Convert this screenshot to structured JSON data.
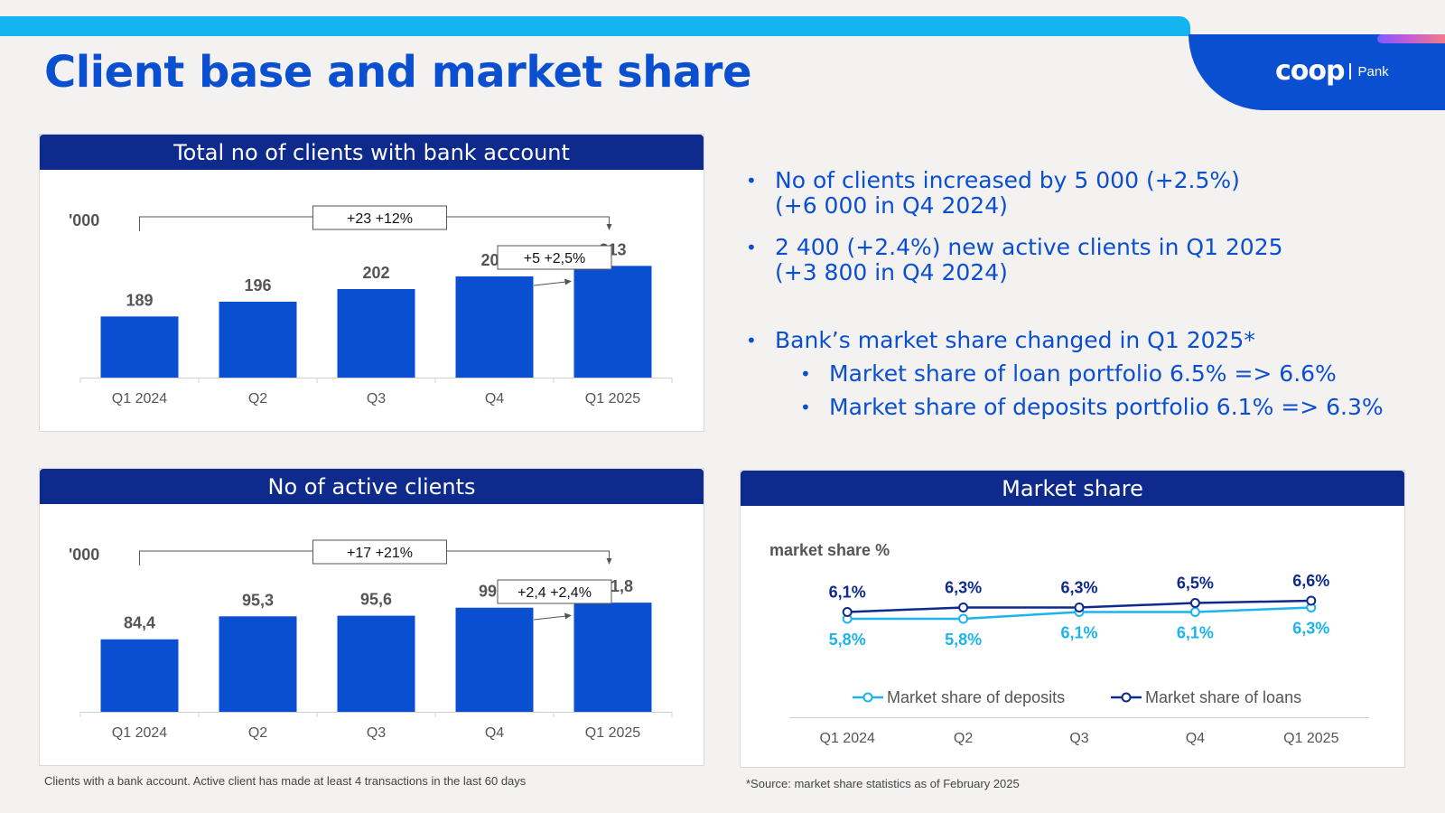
{
  "page": {
    "title": "Client base and market share",
    "logo_word": "coop",
    "logo_sub": "Pank",
    "footnote_left": "Clients with a bank account. Active client has made at least 4 transactions in the last 60 days",
    "footnote_right": "*Source: market share statistics as of February 2025"
  },
  "colors": {
    "brand_blue": "#0b4fd1",
    "header_navy": "#0d2a8c",
    "top_bar": "#12b5f0",
    "bar_fill": "#0b4fd1",
    "deposits_line": "#1bb4ef",
    "loans_line": "#0d2a8c"
  },
  "bullets": [
    {
      "level": 1,
      "lines": [
        "No of clients increased by 5 000 (+2.5%)",
        "(+6 000 in Q4 2024)"
      ]
    },
    {
      "level": 1,
      "lines": [
        "2 400 (+2.4%) new active clients in Q1 2025",
        "(+3 800 in Q4 2024)"
      ]
    },
    {
      "level": 1,
      "lines": [
        "Bank’s market share changed in Q1 2025*"
      ]
    },
    {
      "level": 2,
      "lines": [
        "Market share of loan portfolio 6.5% => 6.6%"
      ]
    },
    {
      "level": 2,
      "lines": [
        "Market share of deposits portfolio 6.1% => 6.3%"
      ]
    }
  ],
  "chart_data": [
    {
      "type": "bar",
      "title": "Total no of clients with bank account",
      "unit_label": "'000",
      "categories": [
        "Q1 2024",
        "Q2",
        "Q3",
        "Q4",
        "Q1 2025"
      ],
      "values": [
        189,
        196,
        202,
        208,
        213
      ],
      "value_labels": [
        "189",
        "196",
        "202",
        "208",
        "213"
      ],
      "ylim": [
        160,
        220
      ],
      "annotations": [
        {
          "text": "+23 +12%",
          "from": "Q1 2024",
          "to": "Q1 2025"
        },
        {
          "text": "+5 +2,5%",
          "from": "Q4",
          "to": "Q1 2025"
        }
      ]
    },
    {
      "type": "bar",
      "title": "No of active clients",
      "unit_label": "'000",
      "categories": [
        "Q1 2024",
        "Q2",
        "Q3",
        "Q4",
        "Q1 2025"
      ],
      "values": [
        84.4,
        95.3,
        95.6,
        99.4,
        101.8
      ],
      "value_labels": [
        "84,4",
        "95,3",
        "95,6",
        "99,4",
        "101,8"
      ],
      "ylim": [
        50,
        110
      ],
      "annotations": [
        {
          "text": "+17 +21%",
          "from": "Q1 2024",
          "to": "Q1 2025"
        },
        {
          "text": "+2,4 +2,4%",
          "from": "Q4",
          "to": "Q1 2025"
        }
      ]
    },
    {
      "type": "line",
      "title": "Market share",
      "ylabel": "market share %",
      "categories": [
        "Q1 2024",
        "Q2",
        "Q3",
        "Q4",
        "Q1 2025"
      ],
      "ylim": [
        0,
        10
      ],
      "legend": "bottom",
      "series": [
        {
          "name": "Market share of deposits",
          "values": [
            5.8,
            5.8,
            6.1,
            6.1,
            6.3
          ],
          "labels": [
            "5,8%",
            "5,8%",
            "6,1%",
            "6,1%",
            "6,3%"
          ],
          "label_position": "below"
        },
        {
          "name": "Market share of loans",
          "values": [
            6.1,
            6.3,
            6.3,
            6.5,
            6.6
          ],
          "labels": [
            "6,1%",
            "6,3%",
            "6,3%",
            "6,5%",
            "6,6%"
          ],
          "label_position": "above"
        }
      ]
    }
  ]
}
